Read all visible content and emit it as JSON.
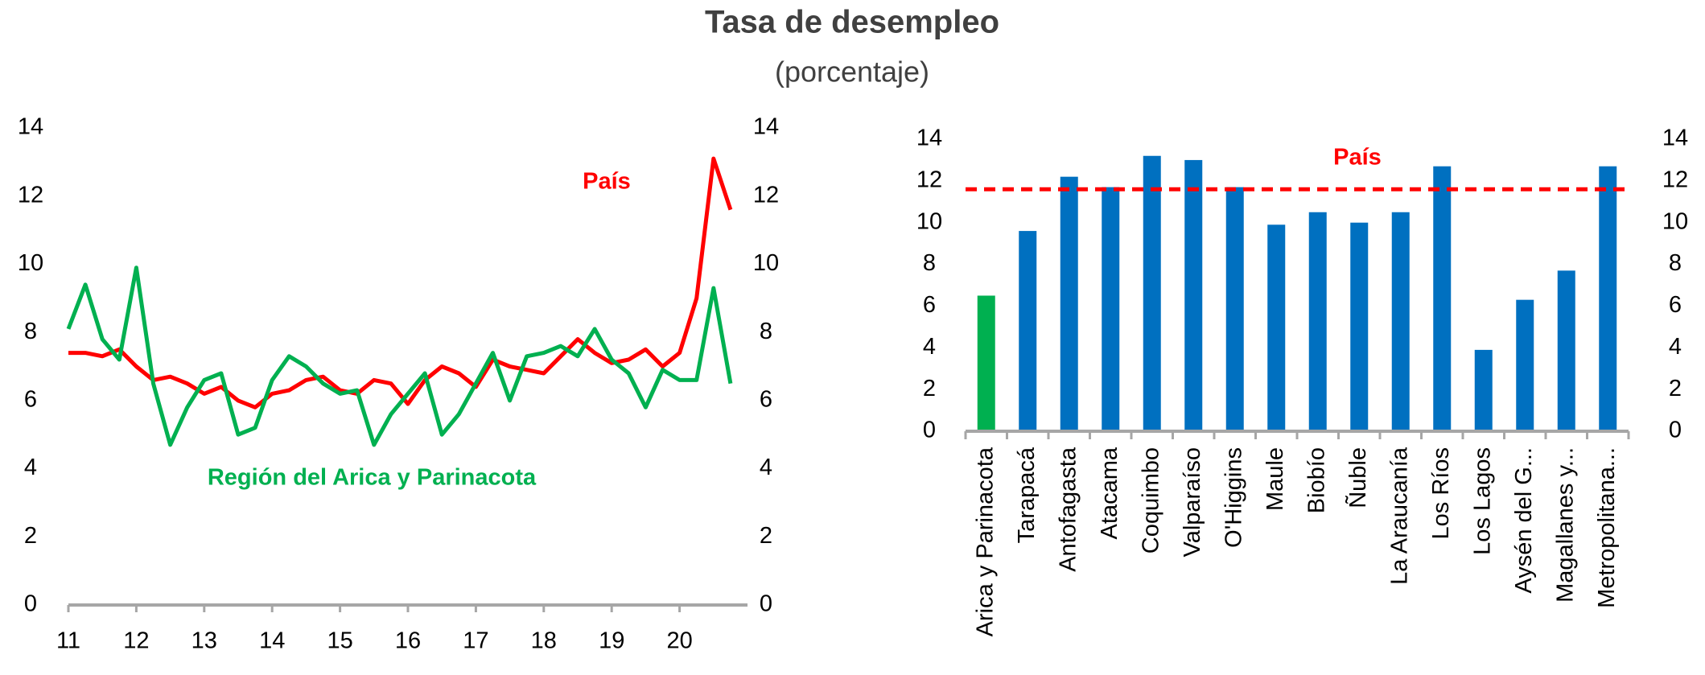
{
  "title": "Tasa de desempleo",
  "subtitle": "(porcentaje)",
  "chart_data": [
    {
      "type": "line",
      "xlim": [
        11,
        21
      ],
      "xticks": [
        11,
        12,
        13,
        14,
        15,
        16,
        17,
        18,
        19,
        20
      ],
      "ylim": [
        0,
        14
      ],
      "yticks": [
        0,
        2,
        4,
        6,
        8,
        10,
        12,
        14
      ],
      "y2lim": [
        0,
        14
      ],
      "y2ticks": [
        0,
        2,
        4,
        6,
        8,
        10,
        12,
        14
      ],
      "x": [
        11,
        11.25,
        11.5,
        11.75,
        12,
        12.25,
        12.5,
        12.75,
        13,
        13.25,
        13.5,
        13.75,
        14,
        14.25,
        14.5,
        14.75,
        15,
        15.25,
        15.5,
        15.75,
        16,
        16.25,
        16.5,
        16.75,
        17,
        17.25,
        17.5,
        17.75,
        18,
        18.25,
        18.5,
        18.75,
        19,
        19.25,
        19.5,
        19.75,
        20,
        20.25,
        20.5,
        20.75
      ],
      "series": [
        {
          "name": "País",
          "color": "#ff0000",
          "values": [
            7.4,
            7.4,
            7.3,
            7.5,
            7.0,
            6.6,
            6.7,
            6.5,
            6.2,
            6.4,
            6.0,
            5.8,
            6.2,
            6.3,
            6.6,
            6.7,
            6.3,
            6.2,
            6.6,
            6.5,
            5.9,
            6.6,
            7.0,
            6.8,
            6.4,
            7.2,
            7.0,
            6.9,
            6.8,
            7.3,
            7.8,
            7.4,
            7.1,
            7.2,
            7.5,
            7.0,
            7.4,
            9.0,
            13.1,
            11.6
          ]
        },
        {
          "name": "Región del Arica y Parinacota",
          "color": "#00b050",
          "values": [
            8.1,
            9.4,
            7.8,
            7.2,
            9.9,
            6.5,
            4.7,
            5.8,
            6.6,
            6.8,
            5.0,
            5.2,
            6.6,
            7.3,
            7.0,
            6.5,
            6.2,
            6.3,
            4.7,
            5.6,
            6.2,
            6.8,
            5.0,
            5.6,
            6.5,
            7.4,
            6.0,
            7.3,
            7.4,
            7.6,
            7.3,
            8.1,
            7.2,
            6.8,
            5.8,
            6.9,
            6.6,
            6.6,
            9.3,
            6.5
          ]
        }
      ]
    },
    {
      "type": "bar",
      "ylim": [
        0,
        14
      ],
      "yticks": [
        0,
        2,
        4,
        6,
        8,
        10,
        12,
        14
      ],
      "y2lim": [
        0,
        14
      ],
      "y2ticks": [
        0,
        2,
        4,
        6,
        8,
        10,
        12,
        14
      ],
      "categories": [
        "Arica y Parinacota",
        "Tarapacá",
        "Antofagasta",
        "Atacama",
        "Coquimbo",
        "Valparaíso",
        "O'Higgins",
        "Maule",
        "Biobío",
        "Ñuble",
        "La Araucanía",
        "Los Ríos",
        "Los Lagos",
        "Aysén del G...",
        "Magallanes y...",
        "Metropolitana..."
      ],
      "values": [
        6.5,
        9.6,
        12.2,
        11.7,
        13.2,
        13.0,
        11.7,
        9.9,
        10.5,
        10.0,
        10.5,
        12.7,
        3.9,
        6.3,
        7.7,
        12.7
      ],
      "colors": [
        "#00b050",
        "#0070c0",
        "#0070c0",
        "#0070c0",
        "#0070c0",
        "#0070c0",
        "#0070c0",
        "#0070c0",
        "#0070c0",
        "#0070c0",
        "#0070c0",
        "#0070c0",
        "#0070c0",
        "#0070c0",
        "#0070c0",
        "#0070c0"
      ],
      "reference_line": {
        "name": "País",
        "value": 11.6,
        "color": "#ff0000"
      }
    }
  ]
}
